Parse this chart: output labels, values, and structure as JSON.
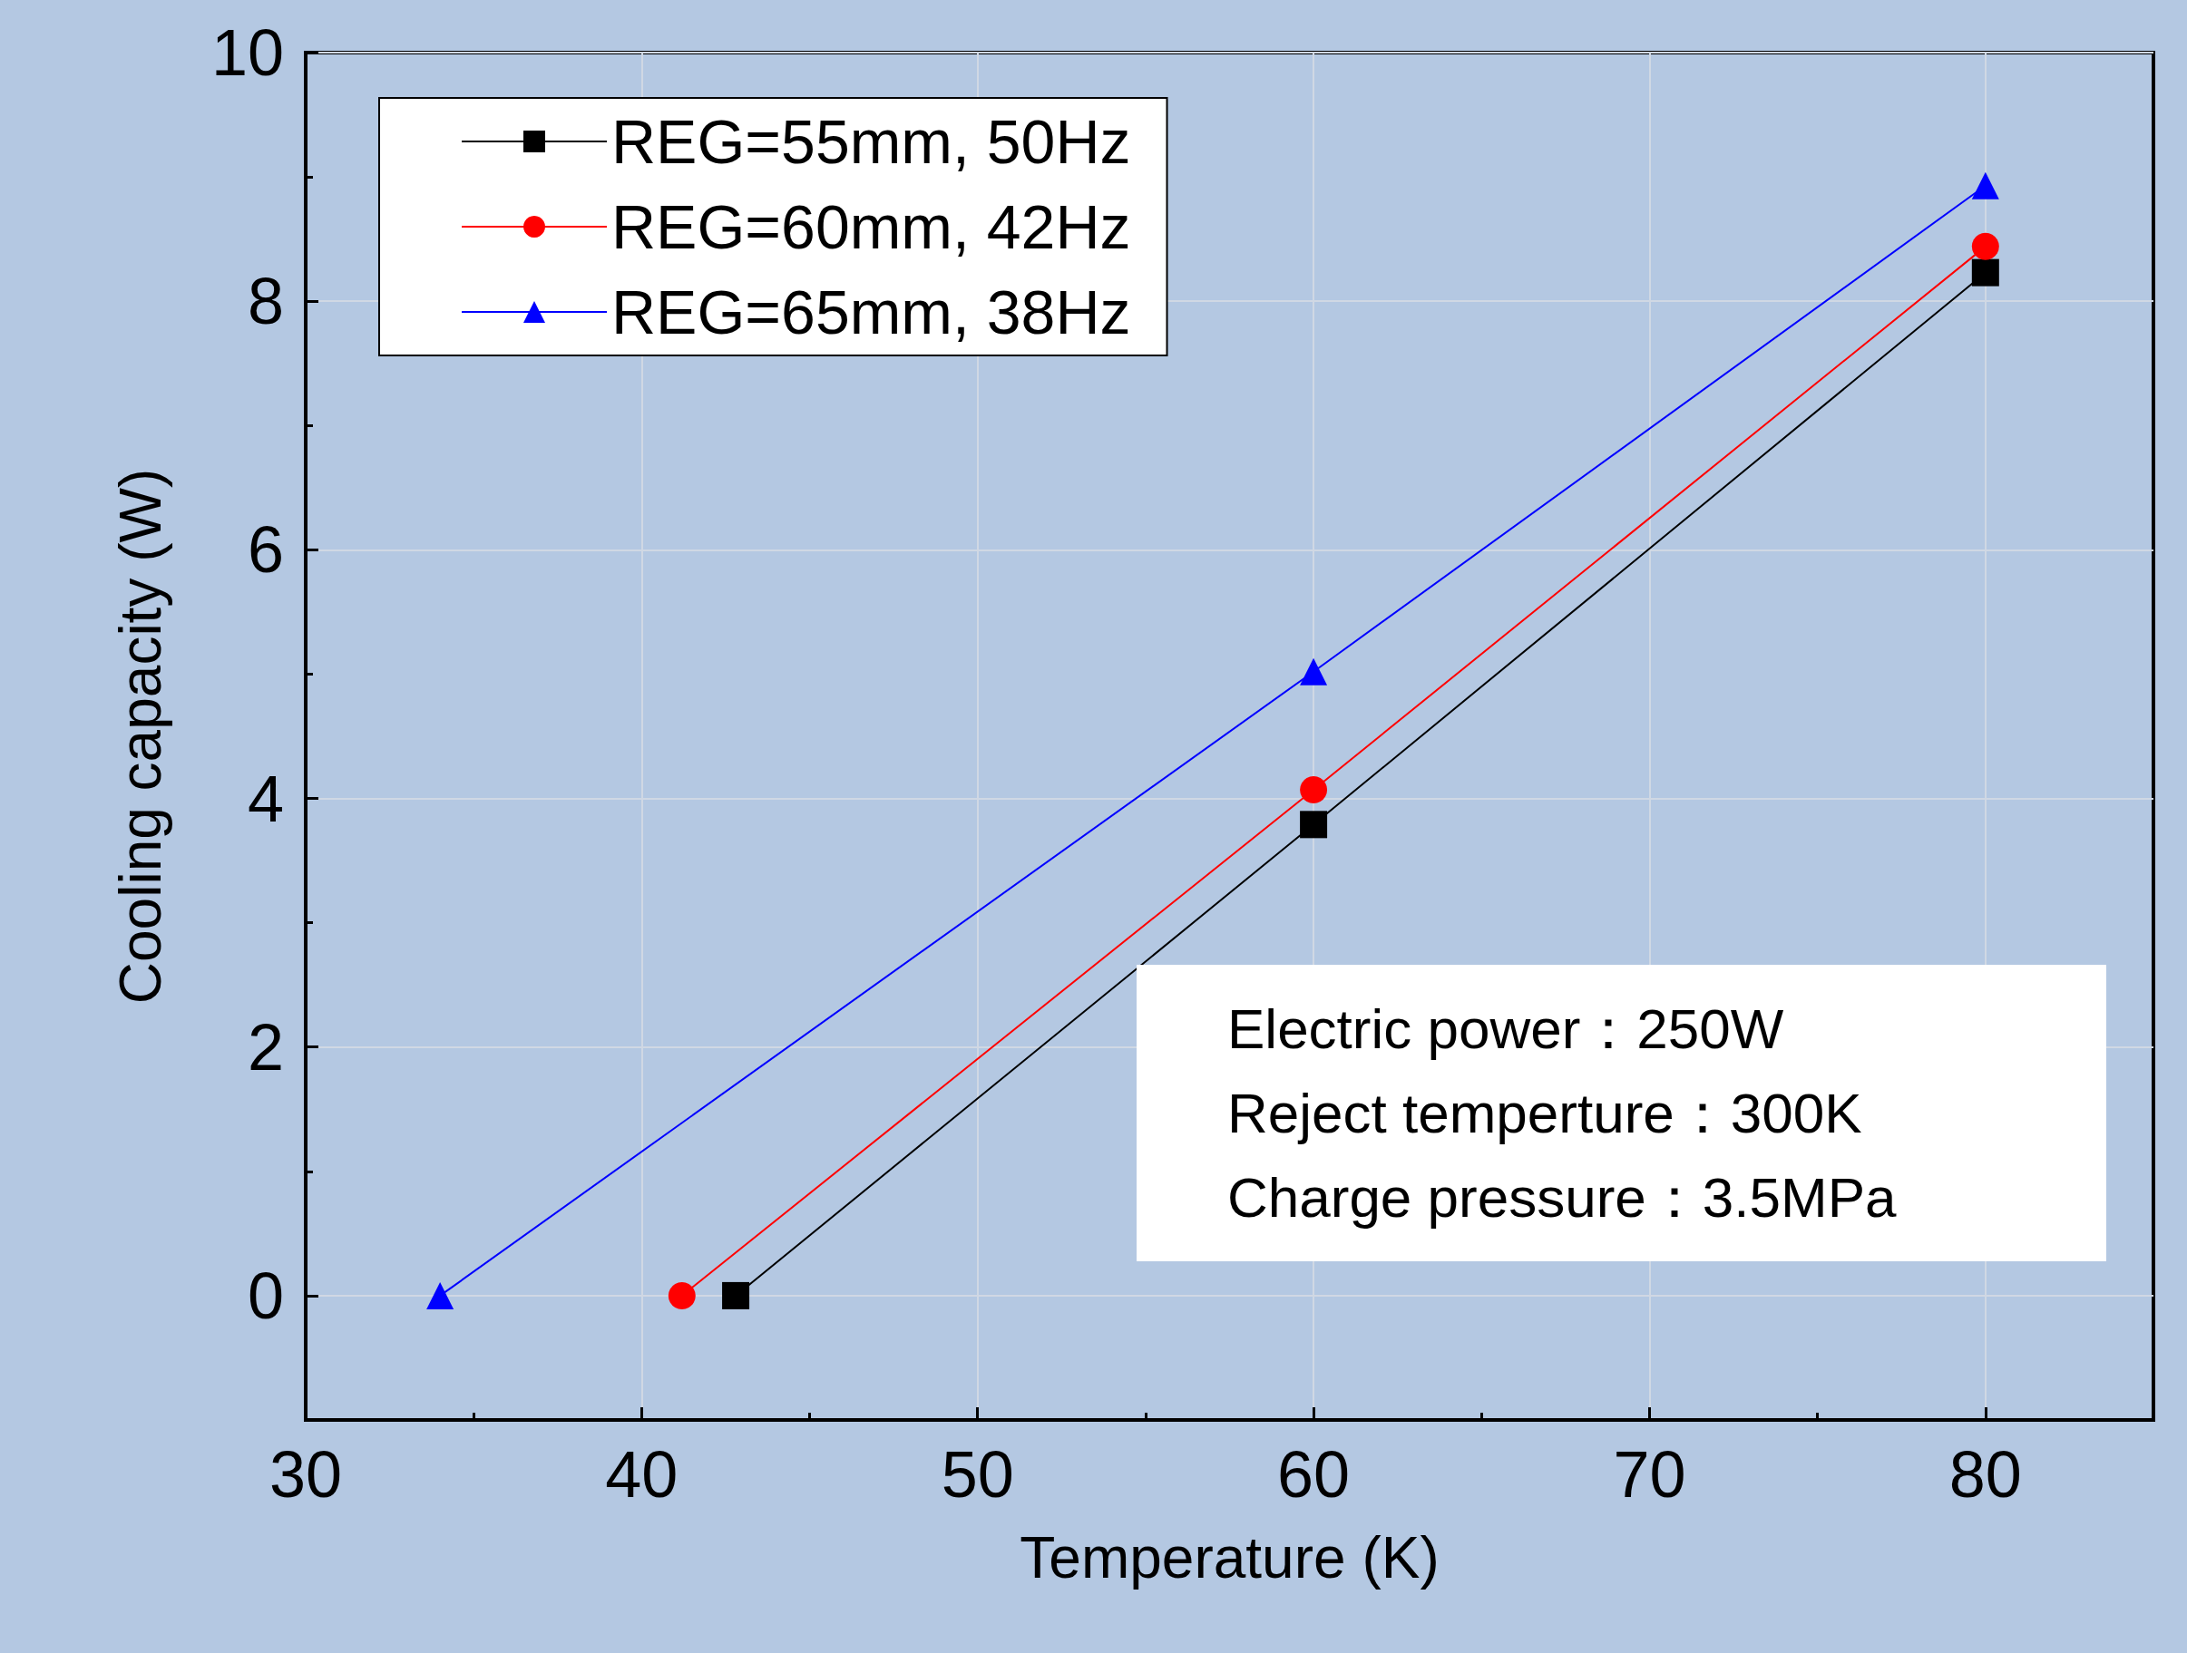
{
  "chart_data": {
    "type": "line",
    "xlabel": "Temperature (K)",
    "ylabel": "Cooling capacity (W)",
    "xlim": [
      30,
      85
    ],
    "xticks": [
      30,
      40,
      50,
      60,
      70,
      80
    ],
    "ylim": [
      -1,
      10
    ],
    "yticks": [
      {
        "value": -1,
        "label": null
      },
      0,
      2,
      4,
      6,
      8,
      10
    ],
    "grid": true,
    "legend": "top left",
    "line_style": "solid",
    "series": [
      {
        "name": "REG=55mm, 50Hz",
        "color": "#000000",
        "marker": "square",
        "x": [
          42.8,
          60,
          80
        ],
        "values": [
          0,
          3.79,
          8.23
        ]
      },
      {
        "name": "REG=60mm, 42Hz",
        "color": "#ff0000",
        "marker": "circle",
        "x": [
          41.2,
          60,
          80
        ],
        "values": [
          0,
          4.07,
          8.44
        ]
      },
      {
        "name": "REG=65mm, 38Hz",
        "color": "#0000ff",
        "marker": "triangle",
        "x": [
          34,
          60,
          80
        ],
        "values": [
          0,
          5.02,
          8.93
        ]
      }
    ],
    "annotations": [
      "Electric power：250W",
      "Reject temperture：300K",
      "Charge pressure：3.5MPa"
    ]
  }
}
